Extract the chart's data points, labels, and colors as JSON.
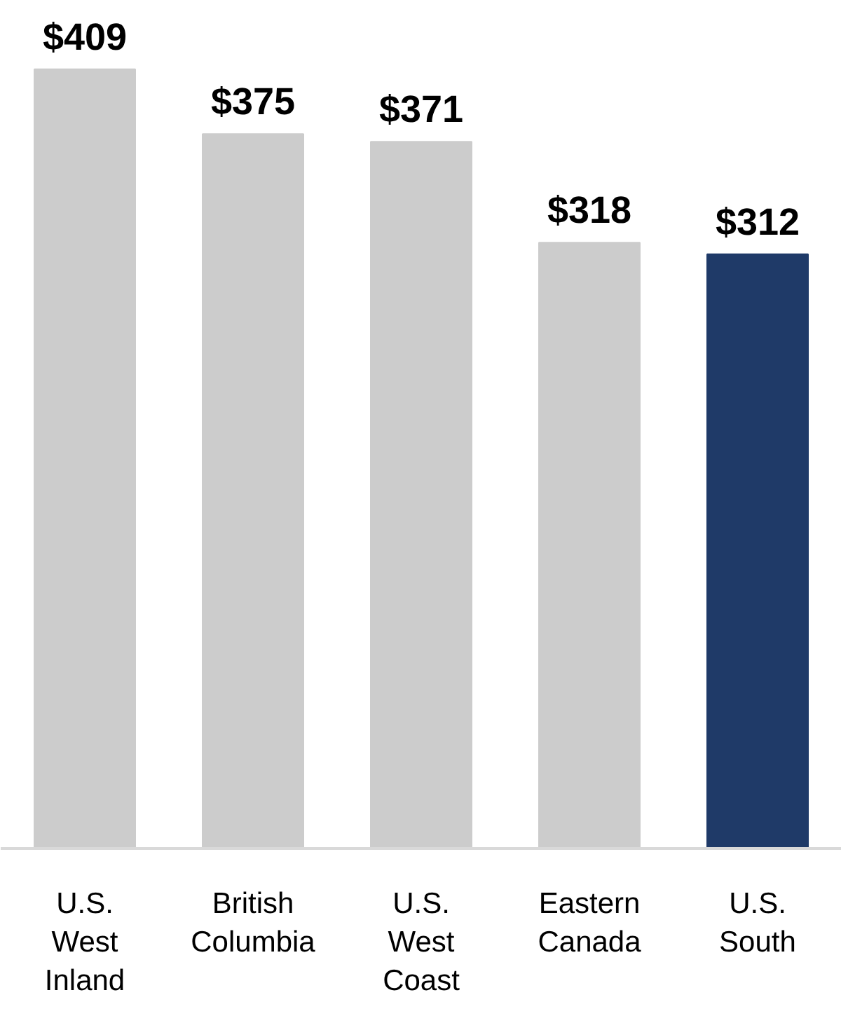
{
  "chart_data": {
    "type": "bar",
    "categories": [
      "U.S.\nWest\nInland",
      "British\nColumbia",
      "U.S.\nWest\nCoast",
      "Eastern\nCanada",
      "U.S.\nSouth"
    ],
    "values": [
      409,
      375,
      371,
      318,
      312
    ],
    "colors": [
      "#cccccc",
      "#cccccc",
      "#cccccc",
      "#cccccc",
      "#1f3a68"
    ],
    "value_labels": [
      "$409",
      "$375",
      "$371",
      "$318",
      "$312"
    ],
    "grid": false
  }
}
